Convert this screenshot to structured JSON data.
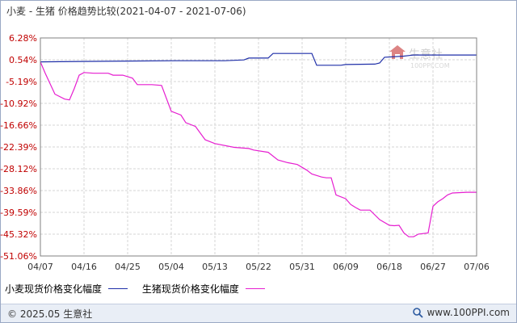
{
  "header": {
    "title": "小麦 - 生猪 价格趋势比较",
    "date_range": "(2021-04-07 - 2021-07-06)"
  },
  "watermark": {
    "text": "生意社",
    "sub": "100PPI.COM"
  },
  "footer": {
    "copyright": "© 2025.05 生意社",
    "site": "www.100PPI.com"
  },
  "chart_data": {
    "type": "line",
    "title": "小麦 - 生猪 价格趋势比较 (2021-04-07 - 2021-07-06)",
    "x_ticks": [
      "04/07",
      "04/16",
      "04/25",
      "05/04",
      "05/13",
      "05/22",
      "05/31",
      "06/09",
      "06/18",
      "06/27",
      "07/06"
    ],
    "y_ticks": [
      "6.28%",
      "0.54%",
      "-5.19%",
      "-10.92%",
      "-16.66%",
      "-22.39%",
      "-28.12%",
      "-33.86%",
      "-39.59%",
      "-45.32%",
      "-51.06%"
    ],
    "ylim": [
      -51.06,
      6.28
    ],
    "xlim": [
      0,
      90
    ],
    "grid": true,
    "legend_position": "bottom",
    "series": [
      {
        "name": "小麦现货价格变化幅度",
        "color": "#1f2fa8",
        "points": [
          [
            0,
            0.0
          ],
          [
            8,
            0.1
          ],
          [
            18,
            0.2
          ],
          [
            28,
            0.3
          ],
          [
            38,
            0.3
          ],
          [
            42,
            0.5
          ],
          [
            43,
            1.0
          ],
          [
            47,
            1.0
          ],
          [
            48,
            2.2
          ],
          [
            56,
            2.2
          ],
          [
            57,
            -0.9
          ],
          [
            62,
            -0.9
          ],
          [
            63,
            -0.7
          ],
          [
            69,
            -0.6
          ],
          [
            70,
            -0.3
          ],
          [
            71,
            1.2
          ],
          [
            75,
            1.5
          ],
          [
            77,
            1.8
          ],
          [
            90,
            1.8
          ]
        ]
      },
      {
        "name": "生猪现货价格变化幅度",
        "color": "#e61ed0",
        "points": [
          [
            0,
            0.0
          ],
          [
            1,
            -3
          ],
          [
            3,
            -8.5
          ],
          [
            5,
            -9.8
          ],
          [
            6,
            -10.0
          ],
          [
            7,
            -7
          ],
          [
            8,
            -3.5
          ],
          [
            9,
            -2.8
          ],
          [
            11,
            -3.0
          ],
          [
            14,
            -3.0
          ],
          [
            15,
            -3.5
          ],
          [
            17,
            -3.5
          ],
          [
            19,
            -4.3
          ],
          [
            20,
            -6.0
          ],
          [
            23,
            -6.0
          ],
          [
            25,
            -6.2
          ],
          [
            27,
            -13
          ],
          [
            29,
            -14
          ],
          [
            30,
            -16.0
          ],
          [
            32,
            -17
          ],
          [
            34,
            -20.5
          ],
          [
            36,
            -21.5
          ],
          [
            40,
            -22.5
          ],
          [
            43,
            -22.8
          ],
          [
            44,
            -23.2
          ],
          [
            47,
            -23.8
          ],
          [
            49,
            -25.8
          ],
          [
            51,
            -26.5
          ],
          [
            53,
            -27.0
          ],
          [
            55,
            -28.5
          ],
          [
            56,
            -29.5
          ],
          [
            58,
            -30.3
          ],
          [
            59,
            -30.5
          ],
          [
            60,
            -30.5
          ],
          [
            61,
            -35.0
          ],
          [
            63,
            -36.0
          ],
          [
            64,
            -37.5
          ],
          [
            65,
            -38.3
          ],
          [
            66,
            -39.0
          ],
          [
            68,
            -39.0
          ],
          [
            70,
            -41.5
          ],
          [
            72,
            -43.0
          ],
          [
            73,
            -43.1
          ],
          [
            74,
            -43.0
          ],
          [
            75,
            -45.0
          ],
          [
            76,
            -46.0
          ],
          [
            77,
            -46.0
          ],
          [
            78,
            -45.3
          ],
          [
            80,
            -45.0
          ],
          [
            81,
            -38.0
          ],
          [
            82,
            -36.8
          ],
          [
            83,
            -36.0
          ],
          [
            84,
            -35.0
          ],
          [
            85,
            -34.5
          ],
          [
            88,
            -34.3
          ],
          [
            90,
            -34.3
          ]
        ]
      }
    ]
  }
}
